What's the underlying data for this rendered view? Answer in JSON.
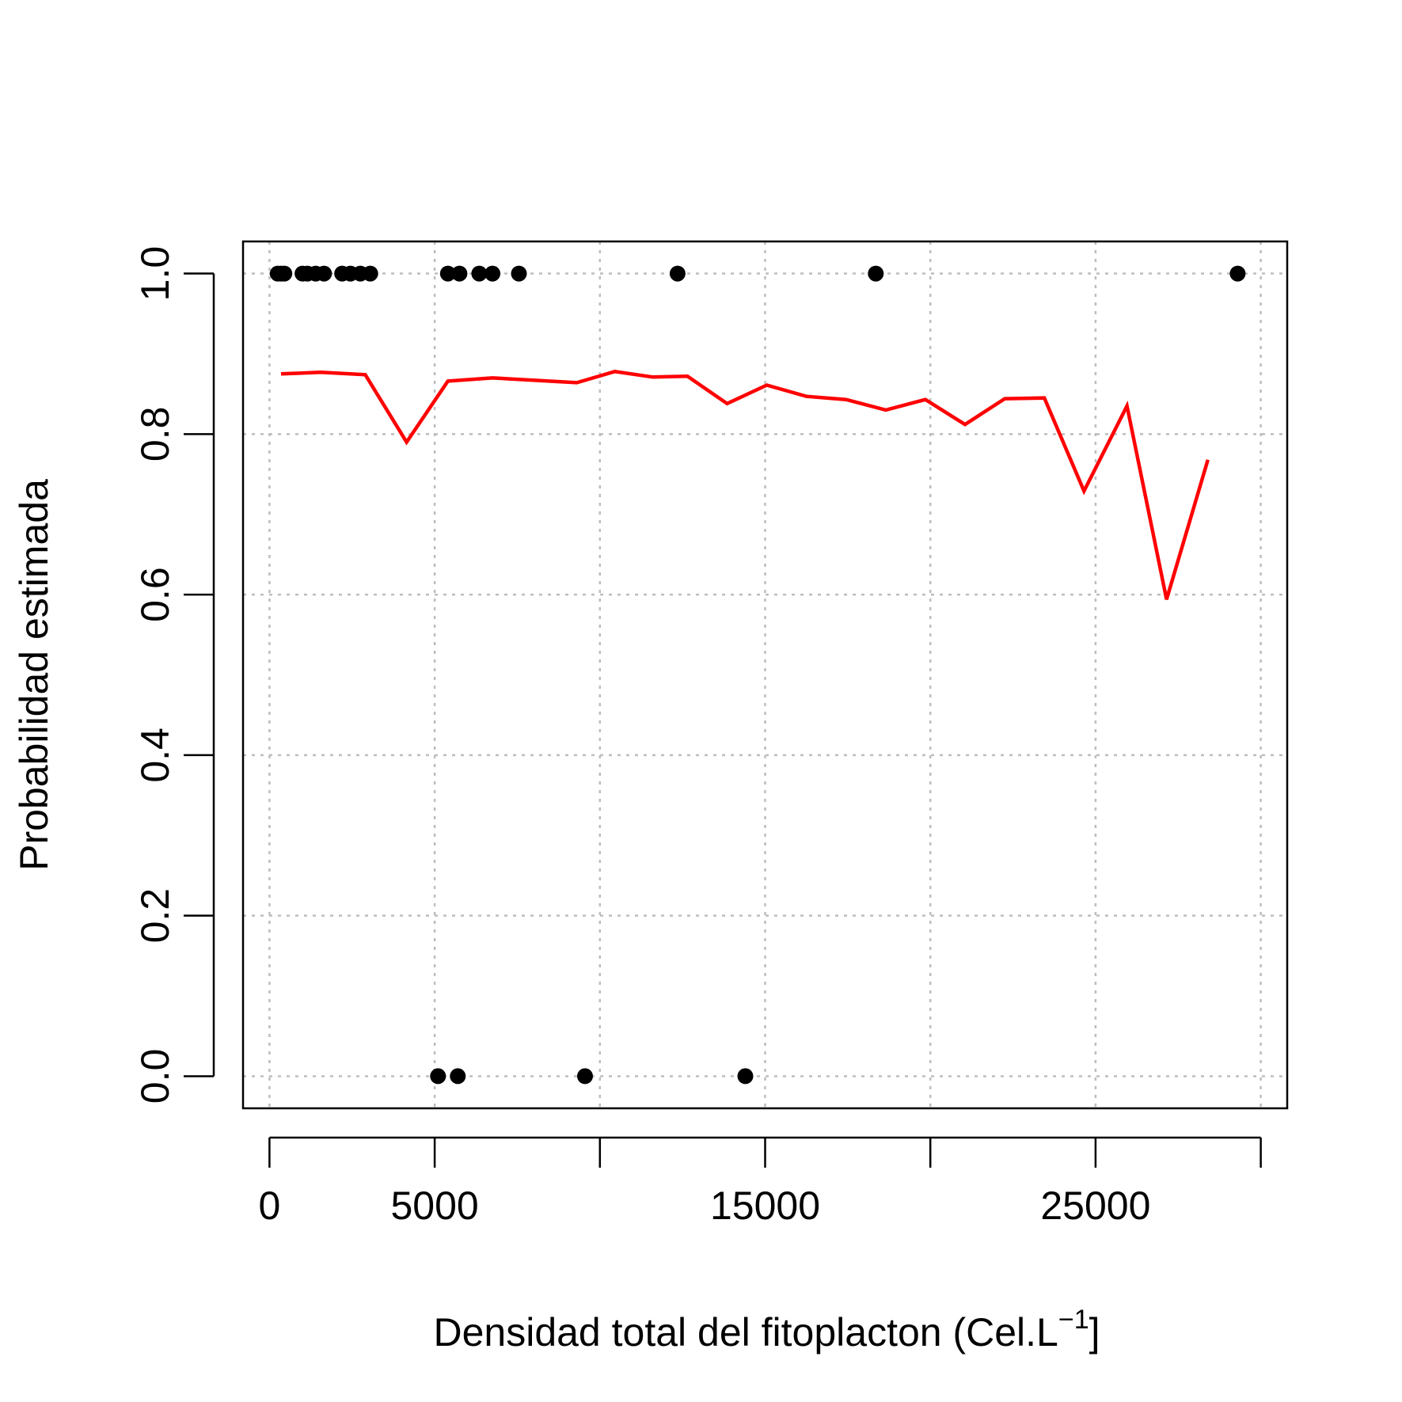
{
  "chart_data": {
    "type": "scatter",
    "xlabel": "Densidad total del fitoplacton (Cel.L",
    "xlabel_superscript": "−1",
    "xlabel_suffix": "]",
    "ylabel": "Probabilidad estimada",
    "xlim": [
      -800,
      30800
    ],
    "ylim": [
      -0.04,
      1.04
    ],
    "x_ticks": [
      0,
      5000,
      10000,
      15000,
      20000,
      25000,
      30000
    ],
    "x_tick_labels": [
      "0",
      "5000",
      "",
      "15000",
      "",
      "25000",
      ""
    ],
    "y_ticks": [
      0.0,
      0.2,
      0.4,
      0.6,
      0.8,
      1.0
    ],
    "y_tick_labels": [
      "0.0",
      "0.2",
      "0.4",
      "0.6",
      "0.8",
      "1.0"
    ],
    "grid": true,
    "series": [
      {
        "kind": "points",
        "color": "#000000",
        "points": [
          [
            250,
            1
          ],
          [
            350,
            1
          ],
          [
            450,
            1
          ],
          [
            1000,
            1
          ],
          [
            1150,
            1
          ],
          [
            1400,
            1
          ],
          [
            1650,
            1
          ],
          [
            2200,
            1
          ],
          [
            2450,
            1
          ],
          [
            2750,
            1
          ],
          [
            3050,
            1
          ],
          [
            5400,
            1
          ],
          [
            5750,
            1
          ],
          [
            6350,
            1
          ],
          [
            6750,
            1
          ],
          [
            7550,
            1
          ],
          [
            12350,
            1
          ],
          [
            18350,
            1
          ],
          [
            29300,
            1
          ],
          [
            5100,
            0
          ],
          [
            5700,
            0
          ],
          [
            9550,
            0
          ],
          [
            14400,
            0
          ]
        ]
      },
      {
        "kind": "line",
        "color": "#ff0000",
        "points": [
          [
            350,
            0.875
          ],
          [
            1550,
            0.877
          ],
          [
            2900,
            0.874
          ],
          [
            4150,
            0.79
          ],
          [
            5400,
            0.866
          ],
          [
            6750,
            0.87
          ],
          [
            9300,
            0.864
          ],
          [
            10450,
            0.878
          ],
          [
            11600,
            0.871
          ],
          [
            12650,
            0.872
          ],
          [
            13850,
            0.838
          ],
          [
            15050,
            0.861
          ],
          [
            16250,
            0.847
          ],
          [
            17450,
            0.843
          ],
          [
            18650,
            0.83
          ],
          [
            19850,
            0.843
          ],
          [
            21050,
            0.812
          ],
          [
            22250,
            0.844
          ],
          [
            23450,
            0.845
          ],
          [
            24650,
            0.729
          ],
          [
            25950,
            0.835
          ],
          [
            27150,
            0.594
          ],
          [
            28400,
            0.768
          ]
        ]
      }
    ]
  }
}
